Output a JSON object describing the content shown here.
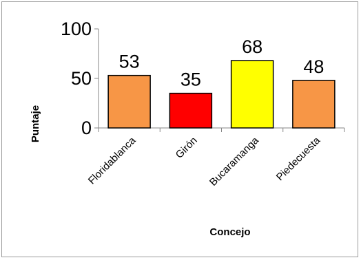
{
  "chart_data": {
    "type": "bar",
    "categories": [
      "Floridablanca",
      "Girón",
      "Bucaramanga",
      "Piedecuesta"
    ],
    "values": [
      53,
      35,
      68,
      48
    ],
    "data_labels": [
      "53",
      "35",
      "68",
      "48"
    ],
    "bar_colors": [
      "#F79646",
      "#FF0000",
      "#FFFF00",
      "#F79646"
    ],
    "bar_outline_color": "#000000",
    "title": "",
    "xlabel": "Concejo",
    "ylabel": "Puntaje",
    "ylim": [
      0,
      100
    ],
    "yticks": [
      0,
      50,
      100
    ],
    "ytick_labels": [
      "0",
      "50",
      "100"
    ],
    "grid": false,
    "legend": "none"
  }
}
